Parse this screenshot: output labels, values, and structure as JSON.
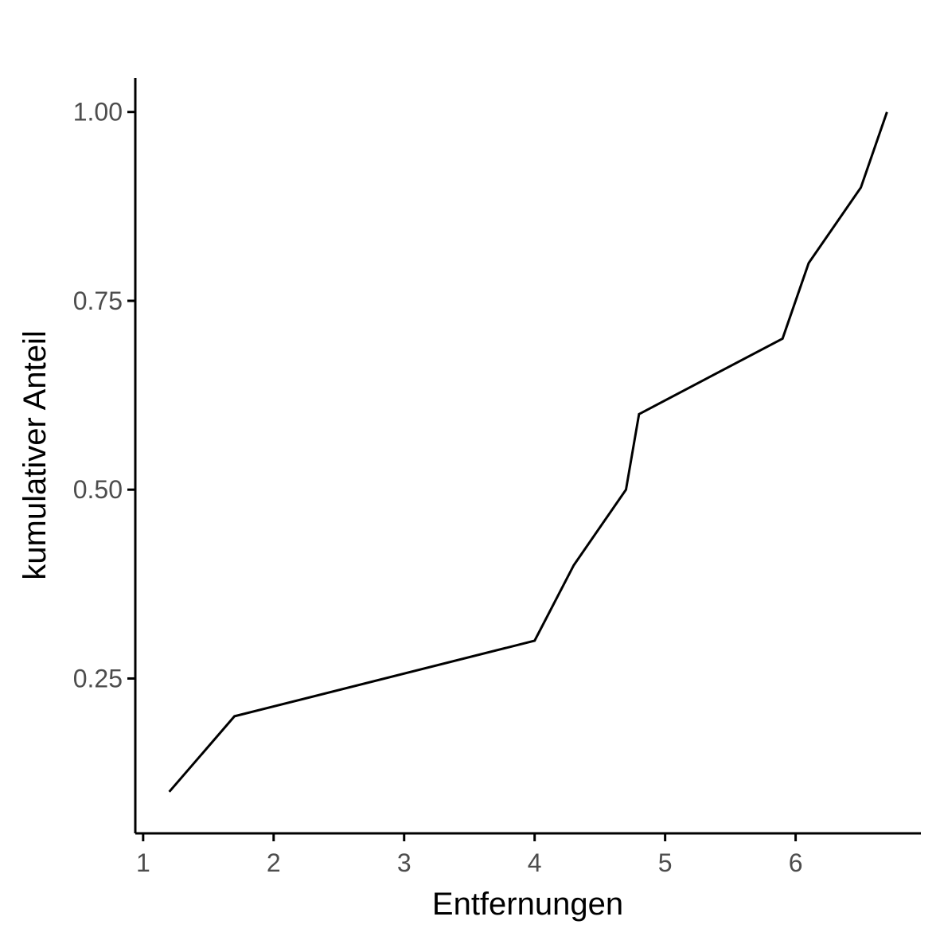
{
  "chart_data": {
    "type": "line",
    "xlabel": "Entfernungen",
    "ylabel": "kumulativer Anteil",
    "xlim": [
      0.94,
      6.96
    ],
    "ylim": [
      0.045,
      1.045
    ],
    "xticks": [
      1,
      2,
      3,
      4,
      5,
      6
    ],
    "xtick_labels": [
      "1",
      "2",
      "3",
      "4",
      "5",
      "6"
    ],
    "yticks": [
      0.25,
      0.5,
      0.75,
      1.0
    ],
    "ytick_labels": [
      "0.25",
      "0.50",
      "0.75",
      "1.00"
    ],
    "grid": false,
    "legend": "none",
    "line_color": "#000000",
    "series": [
      {
        "x": [
          1.2,
          1.7,
          4.0,
          4.3,
          4.7,
          4.8,
          5.9,
          6.1,
          6.5,
          6.7
        ],
        "y": [
          0.1,
          0.2,
          0.3,
          0.4,
          0.5,
          0.6,
          0.7,
          0.8,
          0.9,
          1.0
        ]
      }
    ]
  }
}
